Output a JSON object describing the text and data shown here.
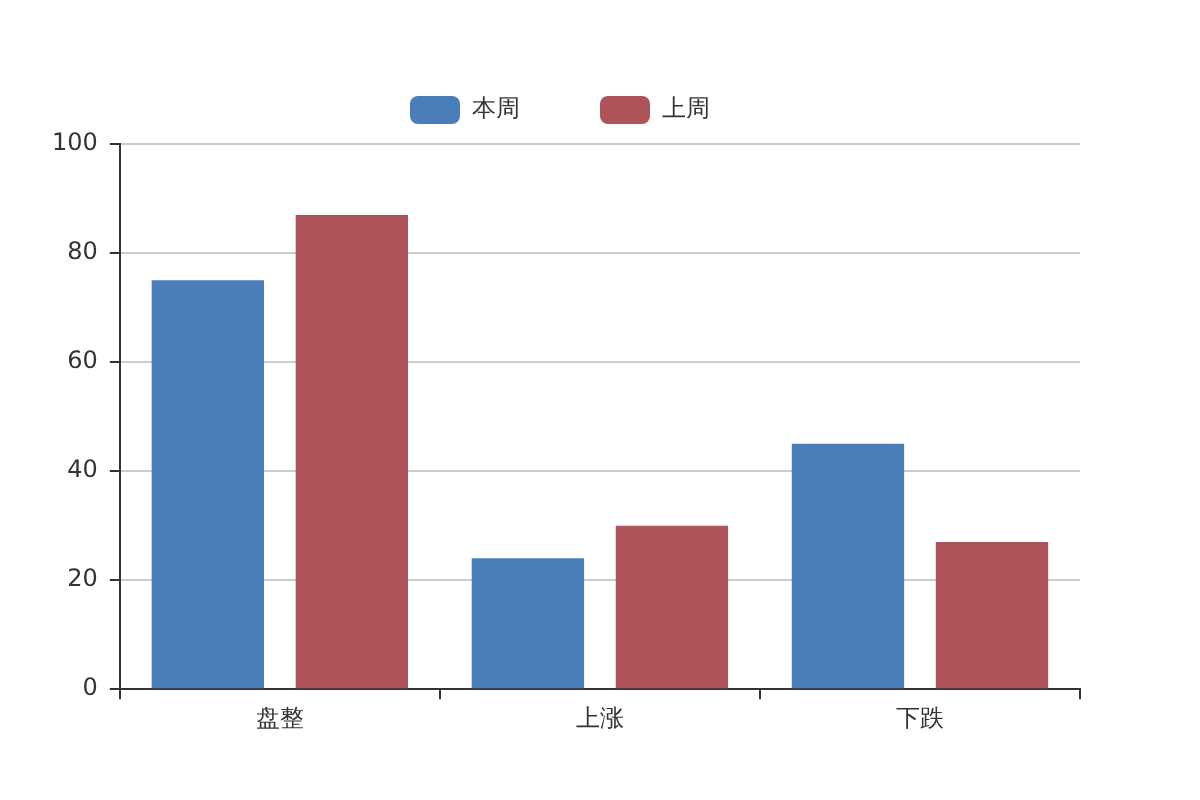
{
  "chart_data": {
    "type": "bar",
    "categories": [
      "盘整",
      "上涨",
      "下跌"
    ],
    "series": [
      {
        "name": "本周",
        "color": "#4a7ebb",
        "values": [
          75,
          24,
          45
        ]
      },
      {
        "name": "上周",
        "color": "#ae5357",
        "values": [
          87,
          30,
          27
        ]
      }
    ],
    "ylim": [
      0,
      100
    ],
    "yticks": [
      0,
      20,
      40,
      60,
      80,
      100
    ],
    "grid": "y",
    "legend": "top"
  }
}
